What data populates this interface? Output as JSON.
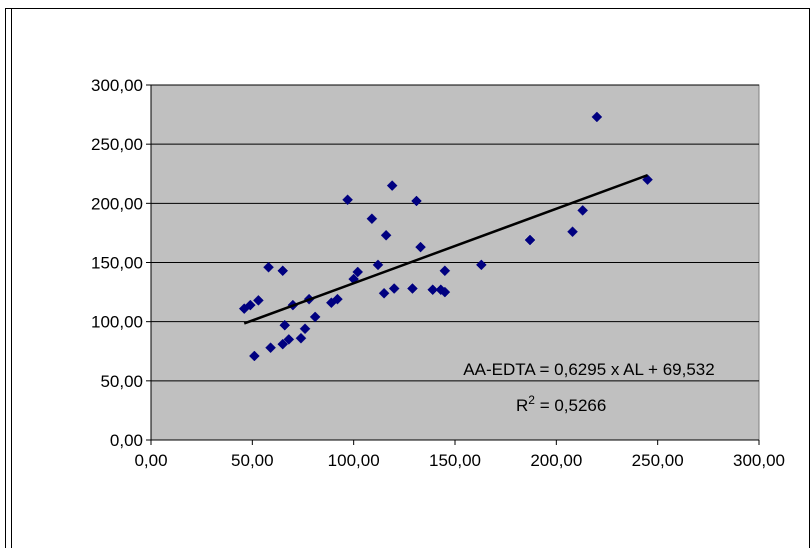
{
  "chart_data": {
    "type": "scatter",
    "title": "",
    "xlabel": "",
    "ylabel": "",
    "xlim": [
      0,
      300
    ],
    "ylim": [
      0,
      300
    ],
    "x_ticks": [
      "0,00",
      "50,00",
      "100,00",
      "150,00",
      "200,00",
      "250,00",
      "300,00"
    ],
    "y_ticks": [
      "0,00",
      "50,00",
      "100,00",
      "150,00",
      "200,00",
      "250,00",
      "300,00"
    ],
    "grid": "horizontal",
    "plot_background": "#c0c0c0",
    "marker_color": "#000080",
    "series": [
      {
        "marker": "diamond",
        "points": [
          [
            46,
            111
          ],
          [
            49,
            114
          ],
          [
            51,
            71
          ],
          [
            53,
            118
          ],
          [
            58,
            146
          ],
          [
            59,
            78
          ],
          [
            65,
            143
          ],
          [
            65,
            81
          ],
          [
            66,
            97
          ],
          [
            68,
            85
          ],
          [
            70,
            114
          ],
          [
            74,
            86
          ],
          [
            76,
            94
          ],
          [
            78,
            119
          ],
          [
            81,
            104
          ],
          [
            89,
            116
          ],
          [
            92,
            119
          ],
          [
            97,
            203
          ],
          [
            100,
            136
          ],
          [
            102,
            142
          ],
          [
            109,
            187
          ],
          [
            112,
            148
          ],
          [
            115,
            124
          ],
          [
            116,
            173
          ],
          [
            119,
            215
          ],
          [
            120,
            128
          ],
          [
            129,
            128
          ],
          [
            131,
            202
          ],
          [
            133,
            163
          ],
          [
            139,
            127
          ],
          [
            143,
            127
          ],
          [
            145,
            143
          ],
          [
            145,
            125
          ],
          [
            163,
            148
          ],
          [
            187,
            169
          ],
          [
            208,
            176
          ],
          [
            213,
            194
          ],
          [
            220,
            273
          ],
          [
            245,
            220
          ]
        ]
      }
    ],
    "trendline": {
      "slope": 0.6295,
      "intercept": 69.532,
      "x_range": [
        46,
        245
      ],
      "color": "#000000",
      "equation": "AA-EDTA = 0,6295 x AL + 69,532",
      "r2_prefix": "R",
      "r2_sup": "2",
      "r2_value": " = 0,5266"
    }
  }
}
